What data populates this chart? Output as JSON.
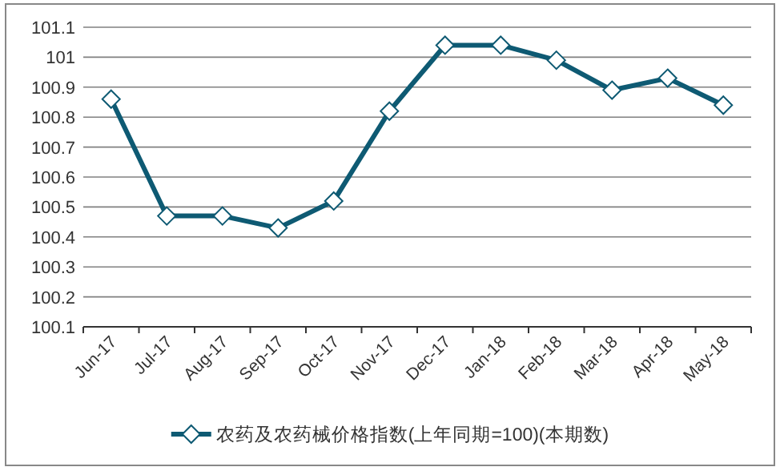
{
  "chart_data": {
    "type": "line",
    "categories": [
      "Jun-17",
      "Jul-17",
      "Aug-17",
      "Sep-17",
      "Oct-17",
      "Nov-17",
      "Dec-17",
      "Jan-18",
      "Feb-18",
      "Mar-18",
      "Apr-18",
      "May-18"
    ],
    "series": [
      {
        "name": "农药及农药械价格指数(上年同期=100)(本期数)",
        "color": "#0e5a73",
        "values": [
          100.86,
          100.47,
          100.47,
          100.43,
          100.52,
          100.82,
          101.04,
          101.04,
          100.99,
          100.89,
          100.93,
          100.84
        ]
      }
    ],
    "ylim": [
      100.1,
      101.1
    ],
    "yticks": [
      100.1,
      100.2,
      100.3,
      100.4,
      100.5,
      100.6,
      100.7,
      100.8,
      100.9,
      101,
      101.1
    ],
    "grid": "y",
    "legend": "bottom",
    "marker": "diamond",
    "line_style": "solid"
  }
}
